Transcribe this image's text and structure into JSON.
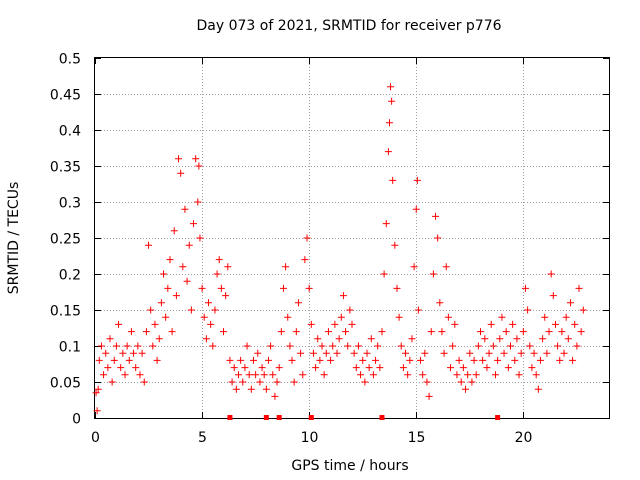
{
  "chart_data": {
    "type": "scatter",
    "title": "Day 073 of 2021, SRMTID for receiver p776",
    "xlabel": "GPS time / hours",
    "ylabel": "SRMTID / TECUs",
    "xlim": [
      0,
      24
    ],
    "ylim": [
      0,
      0.5
    ],
    "x_ticks": [
      0,
      5,
      10,
      15,
      20
    ],
    "x_tick_labels": [
      "0",
      "5",
      "10",
      "15",
      "20"
    ],
    "y_ticks": [
      0,
      0.05,
      0.1,
      0.15,
      0.2,
      0.25,
      0.3,
      0.35,
      0.4,
      0.45,
      0.5
    ],
    "y_tick_labels": [
      "0",
      "0.05",
      "0.1",
      "0.15",
      "0.2",
      "0.25",
      "0.3",
      "0.35",
      "0.4",
      "0.45",
      "0.5"
    ],
    "grid": true,
    "marker": "+",
    "color": "#ff0000",
    "series": [
      {
        "name": "SRMTID",
        "points": [
          [
            0.05,
            0.035
          ],
          [
            0.1,
            0.01
          ],
          [
            0.15,
            0.04
          ],
          [
            0.2,
            0.08
          ],
          [
            0.3,
            0.1
          ],
          [
            0.4,
            0.06
          ],
          [
            0.5,
            0.09
          ],
          [
            0.6,
            0.07
          ],
          [
            0.7,
            0.11
          ],
          [
            0.8,
            0.05
          ],
          [
            0.9,
            0.08
          ],
          [
            1.0,
            0.1
          ],
          [
            1.1,
            0.13
          ],
          [
            1.2,
            0.07
          ],
          [
            1.3,
            0.09
          ],
          [
            1.4,
            0.06
          ],
          [
            1.5,
            0.1
          ],
          [
            1.6,
            0.08
          ],
          [
            1.7,
            0.12
          ],
          [
            1.8,
            0.09
          ],
          [
            1.9,
            0.07
          ],
          [
            2.0,
            0.1
          ],
          [
            2.1,
            0.06
          ],
          [
            2.2,
            0.09
          ],
          [
            2.3,
            0.05
          ],
          [
            2.4,
            0.12
          ],
          [
            2.5,
            0.24
          ],
          [
            2.6,
            0.15
          ],
          [
            2.7,
            0.1
          ],
          [
            2.8,
            0.13
          ],
          [
            2.9,
            0.08
          ],
          [
            3.0,
            0.11
          ],
          [
            3.1,
            0.16
          ],
          [
            3.2,
            0.2
          ],
          [
            3.3,
            0.14
          ],
          [
            3.4,
            0.18
          ],
          [
            3.5,
            0.22
          ],
          [
            3.6,
            0.12
          ],
          [
            3.7,
            0.26
          ],
          [
            3.8,
            0.17
          ],
          [
            3.9,
            0.36
          ],
          [
            4.0,
            0.34
          ],
          [
            4.1,
            0.21
          ],
          [
            4.2,
            0.29
          ],
          [
            4.3,
            0.19
          ],
          [
            4.4,
            0.24
          ],
          [
            4.5,
            0.15
          ],
          [
            4.6,
            0.27
          ],
          [
            4.7,
            0.36
          ],
          [
            4.8,
            0.3
          ],
          [
            4.85,
            0.35
          ],
          [
            4.9,
            0.25
          ],
          [
            5.0,
            0.18
          ],
          [
            5.1,
            0.14
          ],
          [
            5.2,
            0.11
          ],
          [
            5.3,
            0.16
          ],
          [
            5.4,
            0.13
          ],
          [
            5.5,
            0.1
          ],
          [
            5.6,
            0.15
          ],
          [
            5.7,
            0.2
          ],
          [
            5.8,
            0.22
          ],
          [
            5.9,
            0.18
          ],
          [
            6.0,
            0.12
          ],
          [
            6.1,
            0.17
          ],
          [
            6.2,
            0.21
          ],
          [
            6.3,
            0.08
          ],
          [
            6.4,
            0.05
          ],
          [
            6.5,
            0.07
          ],
          [
            6.6,
            0.04
          ],
          [
            6.7,
            0.06
          ],
          [
            6.8,
            0.08
          ],
          [
            6.9,
            0.05
          ],
          [
            7.0,
            0.07
          ],
          [
            7.1,
            0.1
          ],
          [
            7.2,
            0.06
          ],
          [
            7.3,
            0.04
          ],
          [
            7.4,
            0.08
          ],
          [
            7.5,
            0.06
          ],
          [
            7.6,
            0.09
          ],
          [
            7.7,
            0.05
          ],
          [
            7.8,
            0.07
          ],
          [
            7.9,
            0.06
          ],
          [
            8.0,
            0.04
          ],
          [
            8.1,
            0.08
          ],
          [
            8.2,
            0.1
          ],
          [
            8.3,
            0.06
          ],
          [
            8.4,
            0.03
          ],
          [
            8.5,
            0.05
          ],
          [
            8.6,
            0.07
          ],
          [
            8.7,
            0.12
          ],
          [
            8.8,
            0.18
          ],
          [
            8.9,
            0.21
          ],
          [
            9.0,
            0.14
          ],
          [
            9.1,
            0.1
          ],
          [
            9.2,
            0.08
          ],
          [
            9.3,
            0.05
          ],
          [
            9.4,
            0.12
          ],
          [
            9.5,
            0.16
          ],
          [
            9.6,
            0.09
          ],
          [
            9.7,
            0.06
          ],
          [
            9.8,
            0.22
          ],
          [
            9.9,
            0.25
          ],
          [
            10.0,
            0.18
          ],
          [
            10.1,
            0.13
          ],
          [
            10.2,
            0.09
          ],
          [
            10.3,
            0.07
          ],
          [
            10.4,
            0.11
          ],
          [
            10.5,
            0.08
          ],
          [
            10.6,
            0.1
          ],
          [
            10.7,
            0.06
          ],
          [
            10.8,
            0.09
          ],
          [
            10.9,
            0.12
          ],
          [
            11.0,
            0.08
          ],
          [
            11.1,
            0.1
          ],
          [
            11.2,
            0.13
          ],
          [
            11.3,
            0.09
          ],
          [
            11.4,
            0.11
          ],
          [
            11.5,
            0.14
          ],
          [
            11.6,
            0.17
          ],
          [
            11.7,
            0.12
          ],
          [
            11.8,
            0.1
          ],
          [
            11.9,
            0.15
          ],
          [
            12.0,
            0.13
          ],
          [
            12.1,
            0.09
          ],
          [
            12.2,
            0.07
          ],
          [
            12.3,
            0.1
          ],
          [
            12.4,
            0.06
          ],
          [
            12.5,
            0.08
          ],
          [
            12.6,
            0.05
          ],
          [
            12.7,
            0.09
          ],
          [
            12.8,
            0.07
          ],
          [
            12.9,
            0.11
          ],
          [
            13.0,
            0.06
          ],
          [
            13.1,
            0.08
          ],
          [
            13.2,
            0.1
          ],
          [
            13.3,
            0.07
          ],
          [
            13.4,
            0.12
          ],
          [
            13.5,
            0.2
          ],
          [
            13.6,
            0.27
          ],
          [
            13.7,
            0.37
          ],
          [
            13.75,
            0.41
          ],
          [
            13.8,
            0.46
          ],
          [
            13.85,
            0.44
          ],
          [
            13.9,
            0.33
          ],
          [
            14.0,
            0.24
          ],
          [
            14.1,
            0.18
          ],
          [
            14.2,
            0.14
          ],
          [
            14.3,
            0.1
          ],
          [
            14.4,
            0.07
          ],
          [
            14.5,
            0.09
          ],
          [
            14.6,
            0.06
          ],
          [
            14.7,
            0.08
          ],
          [
            14.8,
            0.11
          ],
          [
            14.9,
            0.21
          ],
          [
            15.0,
            0.29
          ],
          [
            15.05,
            0.33
          ],
          [
            15.1,
            0.15
          ],
          [
            15.2,
            0.08
          ],
          [
            15.3,
            0.06
          ],
          [
            15.4,
            0.09
          ],
          [
            15.5,
            0.05
          ],
          [
            15.6,
            0.03
          ],
          [
            15.7,
            0.12
          ],
          [
            15.8,
            0.2
          ],
          [
            15.9,
            0.28
          ],
          [
            16.0,
            0.25
          ],
          [
            16.1,
            0.16
          ],
          [
            16.2,
            0.12
          ],
          [
            16.3,
            0.09
          ],
          [
            16.4,
            0.21
          ],
          [
            16.5,
            0.14
          ],
          [
            16.6,
            0.07
          ],
          [
            16.7,
            0.1
          ],
          [
            16.8,
            0.13
          ],
          [
            16.9,
            0.06
          ],
          [
            17.0,
            0.08
          ],
          [
            17.1,
            0.05
          ],
          [
            17.2,
            0.07
          ],
          [
            17.3,
            0.04
          ],
          [
            17.4,
            0.06
          ],
          [
            17.5,
            0.09
          ],
          [
            17.6,
            0.05
          ],
          [
            17.7,
            0.08
          ],
          [
            17.8,
            0.06
          ],
          [
            17.9,
            0.1
          ],
          [
            18.0,
            0.12
          ],
          [
            18.1,
            0.08
          ],
          [
            18.2,
            0.11
          ],
          [
            18.3,
            0.07
          ],
          [
            18.4,
            0.09
          ],
          [
            18.5,
            0.13
          ],
          [
            18.6,
            0.1
          ],
          [
            18.7,
            0.06
          ],
          [
            18.8,
            0.08
          ],
          [
            18.9,
            0.11
          ],
          [
            19.0,
            0.14
          ],
          [
            19.1,
            0.09
          ],
          [
            19.2,
            0.12
          ],
          [
            19.3,
            0.07
          ],
          [
            19.4,
            0.1
          ],
          [
            19.5,
            0.13
          ],
          [
            19.6,
            0.08
          ],
          [
            19.7,
            0.11
          ],
          [
            19.8,
            0.06
          ],
          [
            19.9,
            0.09
          ],
          [
            20.0,
            0.12
          ],
          [
            20.1,
            0.18
          ],
          [
            20.2,
            0.15
          ],
          [
            20.3,
            0.1
          ],
          [
            20.4,
            0.07
          ],
          [
            20.5,
            0.09
          ],
          [
            20.6,
            0.06
          ],
          [
            20.7,
            0.04
          ],
          [
            20.8,
            0.08
          ],
          [
            20.9,
            0.11
          ],
          [
            21.0,
            0.14
          ],
          [
            21.1,
            0.09
          ],
          [
            21.2,
            0.12
          ],
          [
            21.3,
            0.2
          ],
          [
            21.4,
            0.17
          ],
          [
            21.5,
            0.13
          ],
          [
            21.6,
            0.1
          ],
          [
            21.7,
            0.08
          ],
          [
            21.8,
            0.12
          ],
          [
            21.9,
            0.09
          ],
          [
            22.0,
            0.14
          ],
          [
            22.1,
            0.11
          ],
          [
            22.2,
            0.16
          ],
          [
            22.3,
            0.08
          ],
          [
            22.4,
            0.13
          ],
          [
            22.5,
            0.1
          ],
          [
            22.6,
            0.18
          ],
          [
            22.7,
            0.12
          ],
          [
            22.8,
            0.15
          ]
        ]
      }
    ],
    "bottom_markers_x": [
      6.3,
      8.0,
      8.6,
      10.1,
      13.4,
      18.8
    ]
  }
}
